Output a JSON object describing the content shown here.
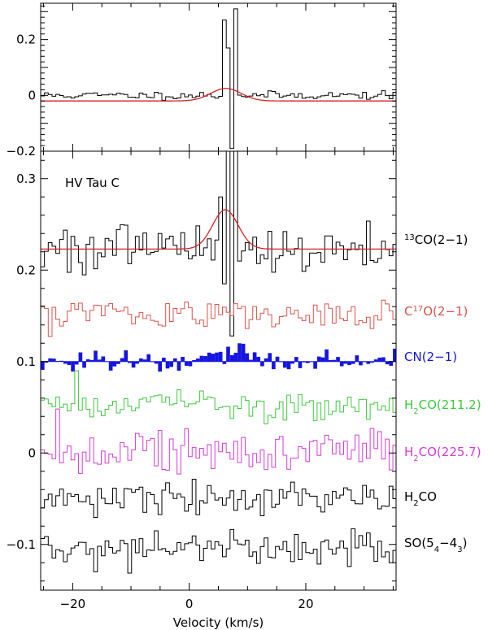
{
  "chart_data": [
    {
      "type": "line",
      "panel": "top",
      "title": "",
      "xlabel": "",
      "ylabel": "",
      "xlim": [
        -25.5,
        35.5
      ],
      "ylim": [
        -0.2,
        0.33
      ],
      "yticks": [
        {
          "value": 0.2,
          "label": "0.2"
        },
        {
          "value": 0.0,
          "label": "0"
        },
        {
          "value": -0.2,
          "label": "−0.2"
        }
      ],
      "series": [
        {
          "id": "spectrum",
          "style": "step",
          "color": "#000000",
          "noise": 0.007,
          "offset": 0.0,
          "spikes": [
            [
              5.6,
              0.27
            ],
            [
              6.3,
              0.17
            ],
            [
              6.9,
              -0.19
            ],
            [
              7.5,
              0.31
            ]
          ]
        },
        {
          "id": "gaussian-fit",
          "style": "smooth",
          "color": "#d62020",
          "amplitude": 0.045,
          "center": 6.3,
          "sigma": 2.6,
          "offset": -0.02
        }
      ]
    },
    {
      "type": "line",
      "panel": "bottom",
      "title": "",
      "xlabel": "Velocity (km/s)",
      "ylabel": "",
      "xlim": [
        -25.5,
        35.5
      ],
      "ylim": [
        -0.15,
        0.33
      ],
      "xticks": [
        {
          "value": -20,
          "label": "−20"
        },
        {
          "value": 0,
          "label": "0"
        },
        {
          "value": 20,
          "label": "20"
        }
      ],
      "yticks": [
        {
          "value": 0.3,
          "label": "0.3"
        },
        {
          "value": 0.2,
          "label": "0.2"
        },
        {
          "value": 0.1,
          "label": "0.1"
        },
        {
          "value": 0.0,
          "label": "0"
        },
        {
          "value": -0.1,
          "label": "−0.1"
        }
      ],
      "annotation": "HV Tau C",
      "series": [
        {
          "id": "13co",
          "label_parts": [
            [
              "",
              ""
            ],
            [
              "13",
              "sup"
            ],
            [
              "CO(2−1)",
              ""
            ]
          ],
          "color": "#000000",
          "style": "step",
          "offset": 0.223,
          "noise": 0.013,
          "spikes": [
            [
              4.8,
              0.28
            ],
            [
              5.5,
              0.185
            ],
            [
              6.3,
              0.34
            ],
            [
              7.0,
              0.128
            ],
            [
              7.6,
              0.34
            ]
          ]
        },
        {
          "id": "13co-fit",
          "color": "#d62020",
          "style": "smooth",
          "offset": 0.223,
          "amplitude": 0.043,
          "center": 6.2,
          "sigma": 2.2
        },
        {
          "id": "c17o",
          "label_parts": [
            [
              "C",
              ""
            ],
            [
              "17",
              "sup"
            ],
            [
              "O(2−1)",
              ""
            ]
          ],
          "color": "#d9534a",
          "style": "step",
          "offset": 0.153,
          "noise": 0.009
        },
        {
          "id": "cn",
          "label_parts": [
            [
              "CN(2−1)",
              ""
            ]
          ],
          "color": "#1515e0",
          "style": "filled",
          "offset": 0.1,
          "noise": 0.006,
          "bump": {
            "amplitude": 0.015,
            "center": 7.0,
            "sigma": 3.0
          }
        },
        {
          "id": "h2co-211",
          "label_parts": [
            [
              "H",
              ""
            ],
            [
              "2",
              "sub"
            ],
            [
              "CO(211.2)",
              ""
            ]
          ],
          "color": "#3ec83e",
          "style": "step",
          "offset": 0.05,
          "noise": 0.008,
          "spikes": [
            [
              -19.5,
              0.09
            ]
          ]
        },
        {
          "id": "h2co-225",
          "label_parts": [
            [
              "H",
              ""
            ],
            [
              "2",
              "sub"
            ],
            [
              "CO(225.7)",
              ""
            ]
          ],
          "color": "#d63ad6",
          "style": "step",
          "offset": 0.0,
          "noise": 0.012
        },
        {
          "id": "h2co",
          "label_parts": [
            [
              "H",
              ""
            ],
            [
              "2",
              "sub"
            ],
            [
              "CO",
              ""
            ]
          ],
          "color": "#000000",
          "style": "step",
          "offset": -0.05,
          "noise": 0.008
        },
        {
          "id": "so",
          "label_parts": [
            [
              "SO(5",
              ""
            ],
            [
              "4",
              "sub"
            ],
            [
              "−4",
              ""
            ],
            [
              "3",
              "sub"
            ],
            [
              ")",
              ""
            ]
          ],
          "color": "#000000",
          "style": "step",
          "offset": -0.105,
          "noise": 0.009
        }
      ]
    }
  ]
}
